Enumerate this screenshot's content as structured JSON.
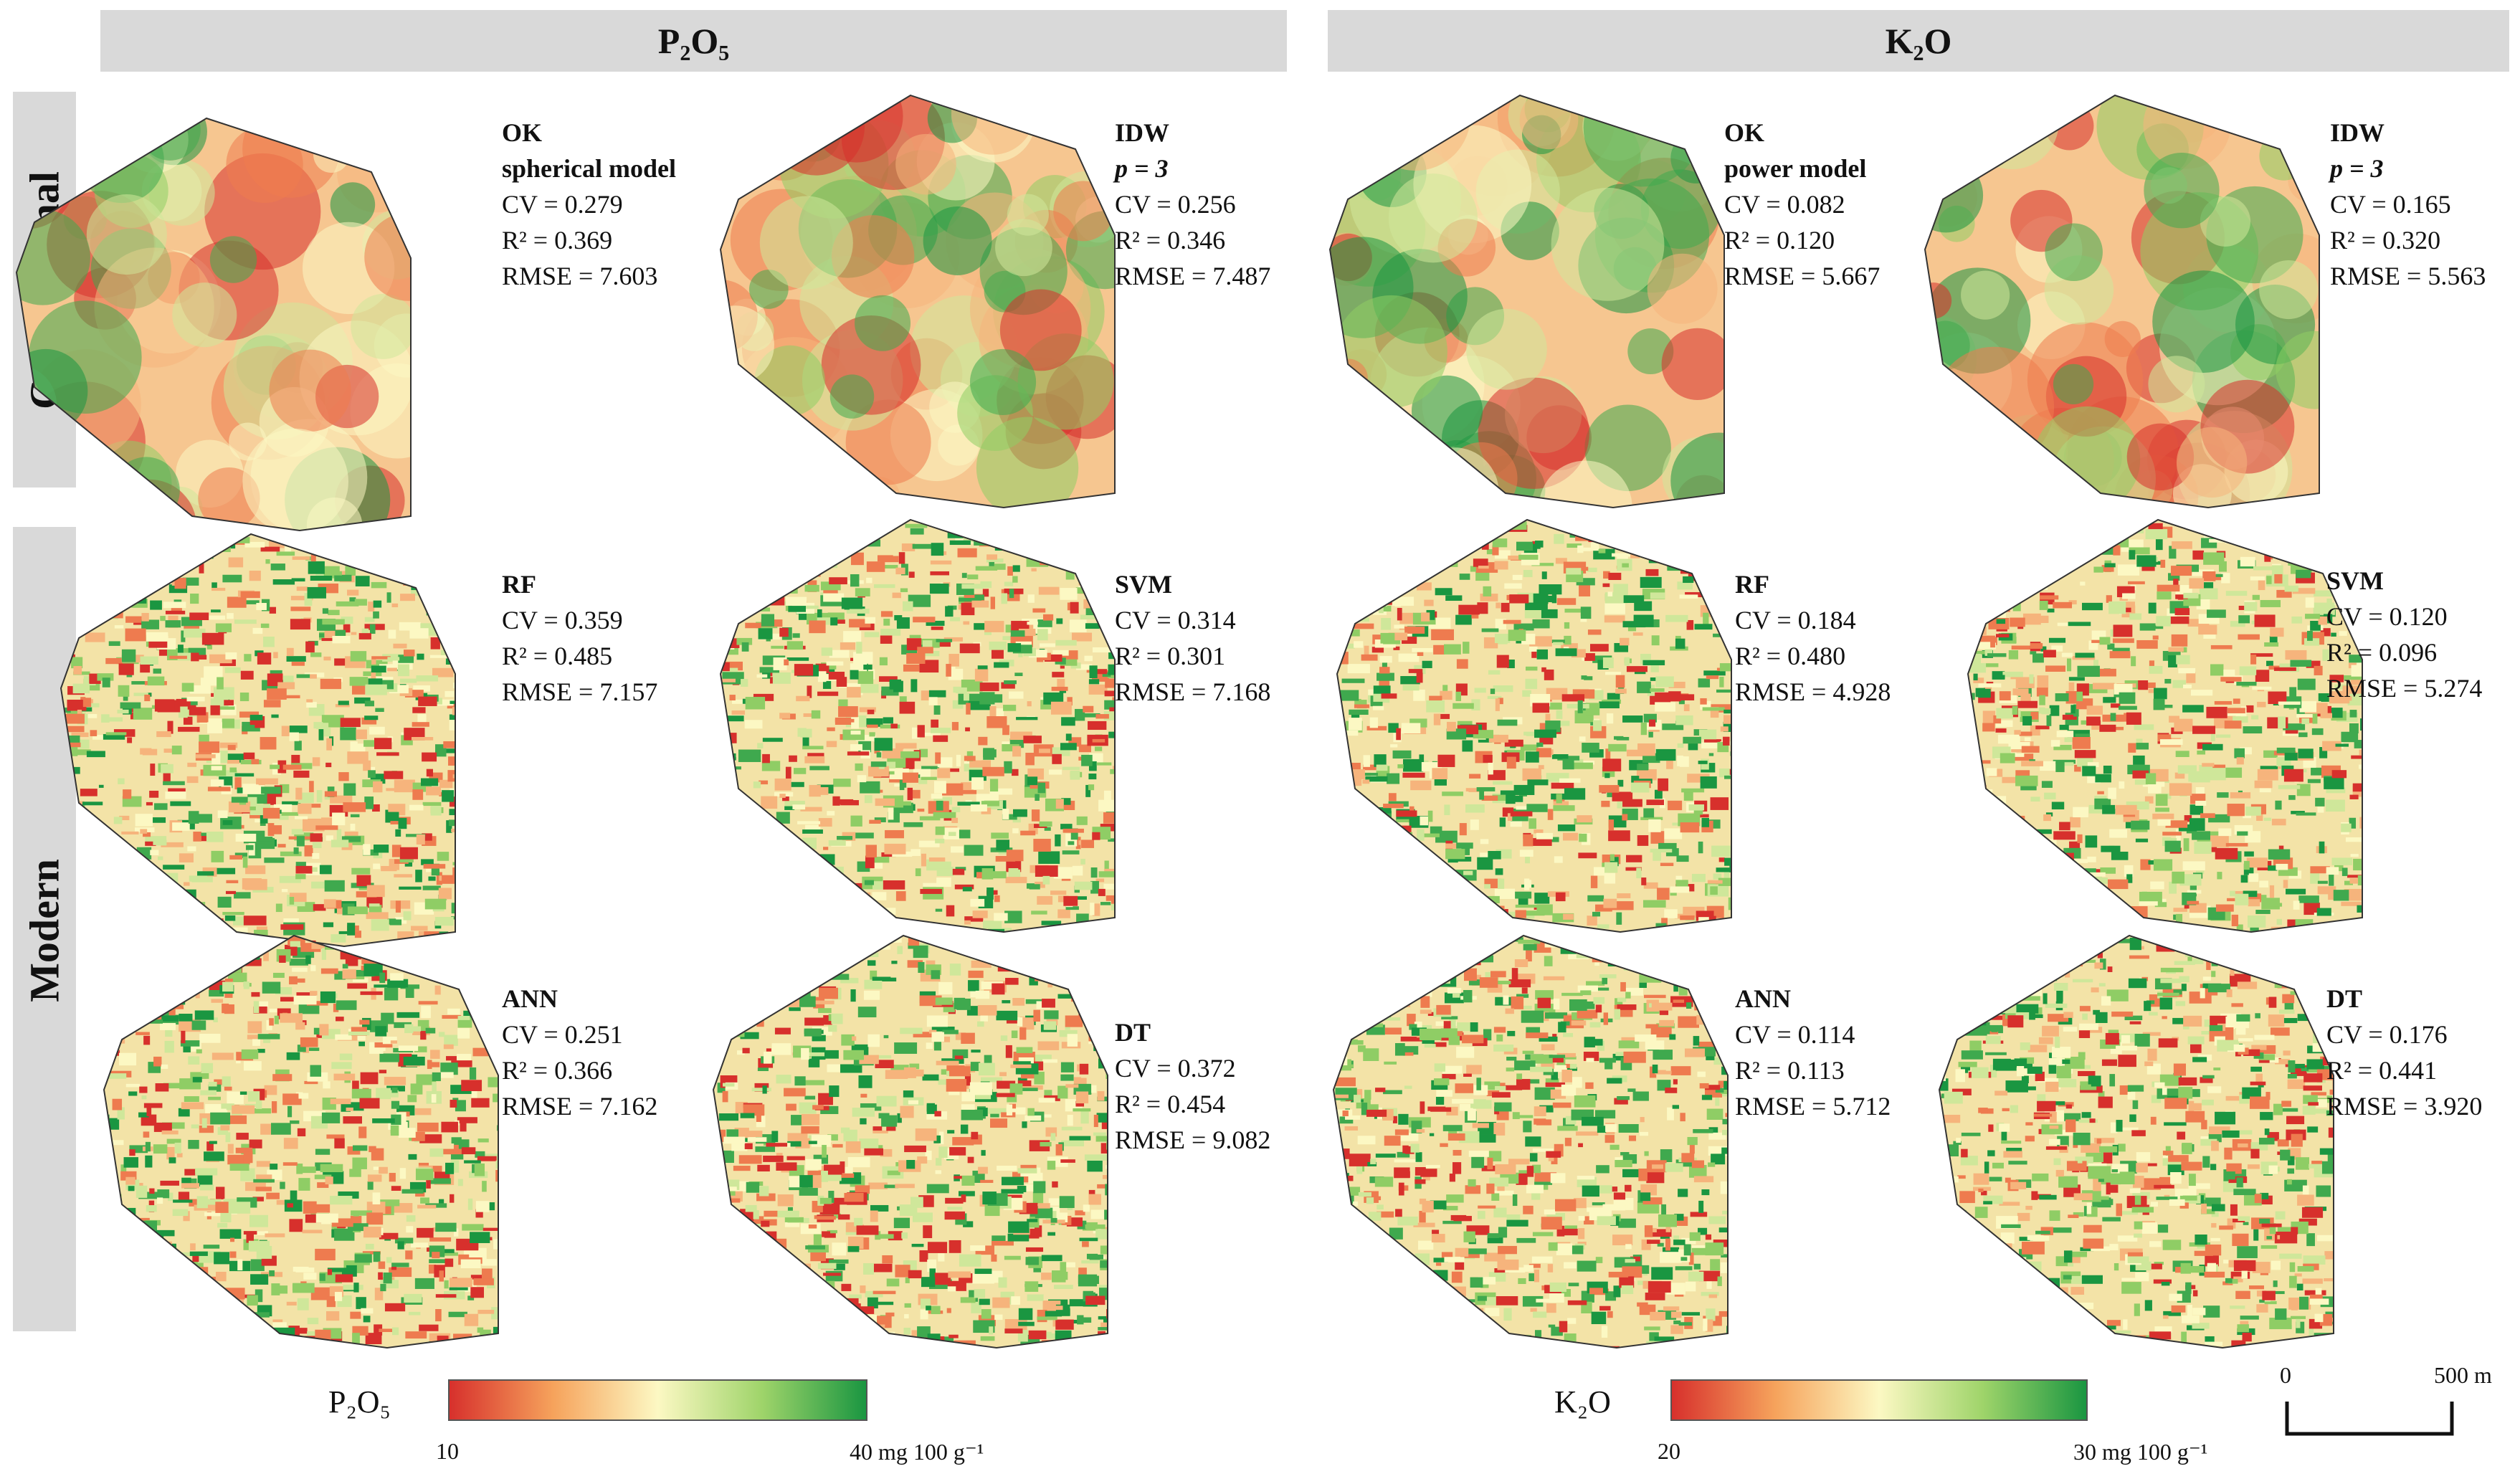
{
  "headers": {
    "left": "P₂O₅",
    "right": "K₂O"
  },
  "rows": {
    "conventional": "Conventional",
    "modern": "Modern"
  },
  "panels": [
    {
      "id": "p2o5-ok",
      "method": "OK",
      "sub": "spherical model",
      "cv": "CV = 0.279",
      "r2": "R² = 0.369",
      "rmse": "RMSE = 7.603"
    },
    {
      "id": "p2o5-idw",
      "method": "IDW",
      "sub": "p = 3",
      "cv": "CV = 0.256",
      "r2": "R² = 0.346",
      "rmse": "RMSE = 7.487"
    },
    {
      "id": "k2o-ok",
      "method": "OK",
      "sub": "power model",
      "cv": "CV = 0.082",
      "r2": "R² = 0.120",
      "rmse": "RMSE = 5.667"
    },
    {
      "id": "k2o-idw",
      "method": "IDW",
      "sub": "p = 3",
      "cv": "CV = 0.165",
      "r2": "R² = 0.320",
      "rmse": "RMSE = 5.563"
    },
    {
      "id": "p2o5-rf",
      "method": "RF",
      "cv": "CV = 0.359",
      "r2": "R² = 0.485",
      "rmse": "RMSE = 7.157"
    },
    {
      "id": "p2o5-svm",
      "method": "SVM",
      "cv": "CV = 0.314",
      "r2": "R² = 0.301",
      "rmse": "RMSE = 7.168"
    },
    {
      "id": "k2o-rf",
      "method": "RF",
      "cv": "CV = 0.184",
      "r2": "R² = 0.480",
      "rmse": "RMSE = 4.928"
    },
    {
      "id": "k2o-svm",
      "method": "SVM",
      "cv": "CV = 0.120",
      "r2": "R² = 0.096",
      "rmse": "RMSE = 5.274"
    },
    {
      "id": "p2o5-ann",
      "method": "ANN",
      "cv": "CV = 0.251",
      "r2": "R² = 0.366",
      "rmse": "RMSE = 7.162"
    },
    {
      "id": "p2o5-dt",
      "method": "DT",
      "cv": "CV = 0.372",
      "r2": "R² = 0.454",
      "rmse": "RMSE = 9.082"
    },
    {
      "id": "k2o-ann",
      "method": "ANN",
      "cv": "CV = 0.114",
      "r2": "R² = 0.113",
      "rmse": "RMSE = 5.712"
    },
    {
      "id": "k2o-dt",
      "method": "DT",
      "cv": "CV = 0.176",
      "r2": "R² = 0.441",
      "rmse": "RMSE = 3.920"
    }
  ],
  "legend_p2o5": {
    "title": "P₂O₅",
    "min": "10",
    "max": "40 mg 100 g⁻¹"
  },
  "legend_k2o": {
    "title": "K₂O",
    "min": "20",
    "max": "30 mg 100 g⁻¹"
  },
  "scale": {
    "zero": "0",
    "end": "500 m"
  },
  "colors": {
    "low": "#d7302c",
    "mid": "#fcf8c3",
    "high": "#1a9641",
    "band": "#d9d9d9"
  }
}
